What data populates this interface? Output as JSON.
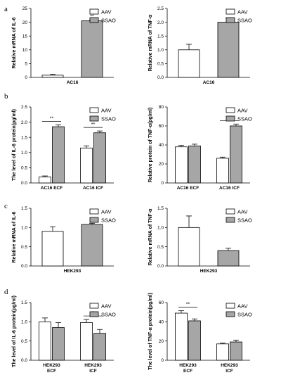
{
  "colors": {
    "aav_fill": "#ffffff",
    "ssao_fill": "#a6a6a6",
    "stroke": "#000000",
    "text": "#000000"
  },
  "panel_letters": [
    "a",
    "b",
    "c",
    "d"
  ],
  "chart_data": [
    {
      "id": "a-left",
      "type": "bar",
      "panel": "a",
      "ylabel": "Relative mRNA of IL-6",
      "categories": [
        "AC16"
      ],
      "series": [
        {
          "name": "AAV",
          "values": [
            0.8
          ],
          "errors": [
            0.3
          ]
        },
        {
          "name": "SSAO",
          "values": [
            20.5
          ],
          "errors": [
            0.3
          ]
        }
      ],
      "ylim": [
        0,
        25
      ],
      "yticks": [
        0,
        5,
        10,
        15,
        20,
        25
      ],
      "ytick_labels": [
        "0",
        "5",
        "10",
        "15",
        "20",
        "25"
      ],
      "significance": [
        {
          "category": 0,
          "label": "**",
          "placement": "above-bar"
        }
      ],
      "legend": {
        "position": "top-right",
        "entries": [
          "AAV",
          "SSAO"
        ]
      }
    },
    {
      "id": "a-right",
      "type": "bar",
      "panel": "a",
      "ylabel": "Relative mRNA of TNF-α",
      "categories": [
        "AC16"
      ],
      "series": [
        {
          "name": "AAV",
          "values": [
            1.0
          ],
          "errors": [
            0.2
          ]
        },
        {
          "name": "SSAO",
          "values": [
            2.0
          ],
          "errors": [
            0.15
          ]
        }
      ],
      "ylim": [
        0,
        2.5
      ],
      "yticks": [
        0,
        0.5,
        1.0,
        1.5,
        2.0,
        2.5
      ],
      "ytick_labels": [
        "0.0",
        "0.5",
        "1.0",
        "1.5",
        "2.0",
        "2.5"
      ],
      "significance": [
        {
          "category": 0,
          "label": "**",
          "placement": "above-bar"
        }
      ],
      "legend": {
        "position": "top-right",
        "entries": [
          "AAV",
          "SSAO"
        ]
      }
    },
    {
      "id": "b-left",
      "type": "bar",
      "panel": "b",
      "ylabel": "The level of IL-6 protein(pg/ml)",
      "categories": [
        "AC16 ECF",
        "AC16 ICF"
      ],
      "series": [
        {
          "name": "AAV",
          "values": [
            0.2,
            1.15
          ],
          "errors": [
            0.03,
            0.07
          ]
        },
        {
          "name": "SSAO",
          "values": [
            1.85,
            1.65
          ],
          "errors": [
            0.06,
            0.06
          ]
        }
      ],
      "ylim": [
        0,
        2.5
      ],
      "yticks": [
        0,
        0.5,
        1.0,
        1.5,
        2.0,
        2.5
      ],
      "ytick_labels": [
        "0.0",
        "0.5",
        "1.0",
        "1.5",
        "2.0",
        "2.5"
      ],
      "significance": [
        {
          "category": 0,
          "label": "**",
          "placement": "bracket"
        },
        {
          "category": 1,
          "label": "**",
          "placement": "bracket"
        }
      ],
      "legend": {
        "position": "top-right",
        "entries": [
          "AAV",
          "SSAO"
        ]
      }
    },
    {
      "id": "b-right",
      "type": "bar",
      "panel": "b",
      "ylabel": "Relative protein of TNF-α(pg/ml)",
      "categories": [
        "AC16 ECF",
        "AC16 ICF"
      ],
      "series": [
        {
          "name": "AAV",
          "values": [
            38,
            26
          ],
          "errors": [
            1.5,
            1.2
          ]
        },
        {
          "name": "SSAO",
          "values": [
            39,
            60
          ],
          "errors": [
            1.8,
            2.0
          ]
        }
      ],
      "ylim": [
        0,
        80
      ],
      "yticks": [
        0,
        20,
        40,
        60,
        80
      ],
      "ytick_labels": [
        "0",
        "20",
        "40",
        "60",
        "80"
      ],
      "significance": [
        {
          "category": 1,
          "label": "**",
          "placement": "bracket"
        }
      ],
      "legend": {
        "position": "top-right",
        "entries": [
          "AAV",
          "SSAO"
        ]
      }
    },
    {
      "id": "c-left",
      "type": "bar",
      "panel": "c",
      "ylabel": "Relative mRNA of IL-6",
      "categories": [
        "HEK293"
      ],
      "series": [
        {
          "name": "AAV",
          "values": [
            0.9
          ],
          "errors": [
            0.12
          ]
        },
        {
          "name": "SSAO",
          "values": [
            1.08
          ],
          "errors": [
            0.03
          ]
        }
      ],
      "ylim": [
        0,
        1.5
      ],
      "yticks": [
        0,
        0.5,
        1.0,
        1.5
      ],
      "ytick_labels": [
        "0.0",
        "0.5",
        "1.0",
        "1.5"
      ],
      "significance": [],
      "legend": {
        "position": "top-right",
        "entries": [
          "AAV",
          "SSAO"
        ]
      }
    },
    {
      "id": "c-right",
      "type": "bar",
      "panel": "c",
      "ylabel": "Relative mRNA of TNF-α",
      "categories": [
        "HEK293"
      ],
      "series": [
        {
          "name": "AAV",
          "values": [
            1.0
          ],
          "errors": [
            0.3
          ]
        },
        {
          "name": "SSAO",
          "values": [
            0.4
          ],
          "errors": [
            0.06
          ]
        }
      ],
      "ylim": [
        0,
        1.5
      ],
      "yticks": [
        0,
        0.5,
        1.0,
        1.5
      ],
      "ytick_labels": [
        "0.0",
        "0.5",
        "1.0",
        "1.5"
      ],
      "significance": [],
      "legend": {
        "position": "top-right",
        "entries": [
          "AAV",
          "SSAO"
        ]
      }
    },
    {
      "id": "d-left",
      "type": "bar",
      "panel": "d",
      "ylabel": "The level of IL-6 protein(pg/ml)",
      "categories": [
        "HEK293\nECF",
        "HEK293\nICF"
      ],
      "series": [
        {
          "name": "AAV",
          "values": [
            1.0,
            0.98
          ],
          "errors": [
            0.1,
            0.08
          ]
        },
        {
          "name": "SSAO",
          "values": [
            0.85,
            0.7
          ],
          "errors": [
            0.13,
            0.1
          ]
        }
      ],
      "ylim": [
        0,
        1.5
      ],
      "yticks": [
        0,
        0.5,
        1.0,
        1.5
      ],
      "ytick_labels": [
        "0.0",
        "0.5",
        "1.0",
        "1.5"
      ],
      "significance": [
        {
          "category": 1,
          "label": "*",
          "placement": "bracket"
        }
      ],
      "legend": {
        "position": "top-right",
        "entries": [
          "AAV",
          "SSAO"
        ]
      }
    },
    {
      "id": "d-right",
      "type": "bar",
      "panel": "d",
      "ylabel": "The level of TNF-α protein(pg/ml)",
      "categories": [
        "HEK293\nECF",
        "HEK293\nICF"
      ],
      "series": [
        {
          "name": "AAV",
          "values": [
            49,
            17
          ],
          "errors": [
            2.5,
            1.0
          ]
        },
        {
          "name": "SSAO",
          "values": [
            41,
            19
          ],
          "errors": [
            2.0,
            2.0
          ]
        }
      ],
      "ylim": [
        0,
        60
      ],
      "yticks": [
        0,
        20,
        40,
        60
      ],
      "ytick_labels": [
        "0",
        "20",
        "40",
        "60"
      ],
      "significance": [
        {
          "category": 0,
          "label": "**",
          "placement": "bracket"
        }
      ],
      "legend": {
        "position": "top-right",
        "entries": [
          "AAV",
          "SSAO"
        ]
      }
    }
  ]
}
